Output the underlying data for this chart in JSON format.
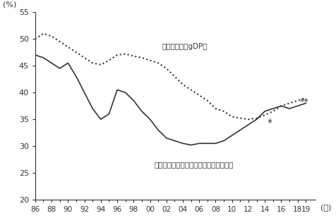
{
  "years": [
    1986,
    1987,
    1988,
    1989,
    1990,
    1991,
    1992,
    1993,
    1994,
    1995,
    1996,
    1997,
    1998,
    1999,
    2000,
    2001,
    2002,
    2003,
    2004,
    2005,
    2006,
    2007,
    2008,
    2009,
    2010,
    2011,
    2012,
    2013,
    2014,
    2015,
    2016,
    2017,
    2018,
    2019
  ],
  "gdp_ratio": [
    50.0,
    51.0,
    50.5,
    49.5,
    48.5,
    47.5,
    46.5,
    45.5,
    45.2,
    46.0,
    47.0,
    47.2,
    46.8,
    46.5,
    46.0,
    45.5,
    44.5,
    43.0,
    41.5,
    40.5,
    39.5,
    38.5,
    37.0,
    36.5,
    35.5,
    35.2,
    35.0,
    35.2,
    35.8,
    36.5,
    37.5,
    38.0,
    38.5,
    39.0
  ],
  "income_ratio": [
    47.0,
    46.5,
    45.5,
    44.5,
    45.5,
    43.0,
    40.0,
    37.0,
    35.0,
    36.0,
    40.5,
    40.0,
    38.5,
    36.5,
    35.0,
    33.0,
    31.5,
    31.0,
    30.5,
    30.2,
    30.5,
    30.5,
    30.5,
    31.0,
    32.0,
    33.0,
    34.0,
    35.0,
    36.5,
    37.0,
    37.5,
    37.0,
    37.5,
    38.0
  ],
  "star_income_x": 2014.3,
  "star_income_y": 33.8,
  "star_gdp_x": 2018.3,
  "star_gdp_y": 37.8,
  "label_gdp": "民間消費の対gDP比",
  "label_income": "農村の都市に対する一人当たり所得比率",
  "ylabel": "(%)",
  "xlabel": "(年)",
  "ylim": [
    20,
    55
  ],
  "yticks": [
    20,
    25,
    30,
    35,
    40,
    45,
    50,
    55
  ],
  "xtick_labels": [
    "86",
    "88",
    "90",
    "92",
    "94",
    "96",
    "98",
    "00",
    "02",
    "04",
    "06",
    "08",
    "10",
    "12",
    "14",
    "16",
    "18",
    "19"
  ],
  "xtick_years": [
    1986,
    1988,
    1990,
    1992,
    1994,
    1996,
    1998,
    2000,
    2002,
    2004,
    2006,
    2008,
    2010,
    2012,
    2014,
    2016,
    2018,
    2019
  ],
  "text_color": "#333333",
  "line_color": "#333333",
  "background_color": "#ffffff"
}
